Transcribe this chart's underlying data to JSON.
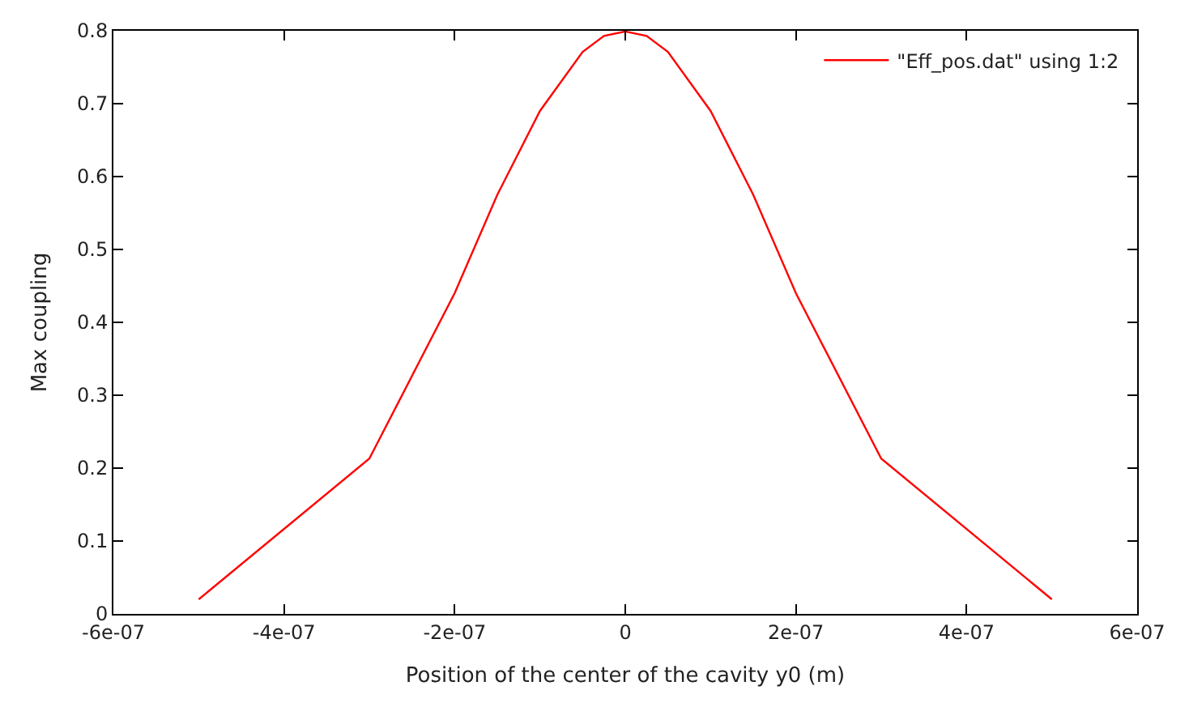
{
  "chart_data": {
    "type": "line",
    "xlabel": "Position of the center of the cavity y0 (m)",
    "ylabel": "Max coupling",
    "x": [
      -5e-07,
      -3e-07,
      -2e-07,
      -1.5e-07,
      -1e-07,
      -5e-08,
      -2.5e-08,
      0,
      2.5e-08,
      5e-08,
      1e-07,
      1.5e-07,
      2e-07,
      3e-07,
      5e-07
    ],
    "series": [
      {
        "name": "\"Eff_pos.dat\" using 1:2",
        "color": "#ff0000",
        "values": [
          0.02,
          0.213,
          0.44,
          0.575,
          0.69,
          0.771,
          0.793,
          0.799,
          0.793,
          0.771,
          0.69,
          0.575,
          0.44,
          0.213,
          0.02
        ]
      }
    ],
    "xlim": [
      -6e-07,
      6e-07
    ],
    "xticks": [
      {
        "value": -6e-07,
        "label": "-6e-07"
      },
      {
        "value": -4e-07,
        "label": "-4e-07"
      },
      {
        "value": -2e-07,
        "label": "-2e-07"
      },
      0,
      {
        "value": 2e-07,
        "label": "2e-07"
      },
      {
        "value": 4e-07,
        "label": "4e-07"
      },
      {
        "value": 6e-07,
        "label": "6e-07"
      }
    ],
    "ylim": [
      0,
      0.8
    ],
    "yticks": [
      0,
      0.1,
      0.2,
      0.3,
      0.4,
      0.5,
      0.6,
      0.7,
      0.8
    ],
    "legend": "top right",
    "marker": "none",
    "line_style": "solid"
  }
}
